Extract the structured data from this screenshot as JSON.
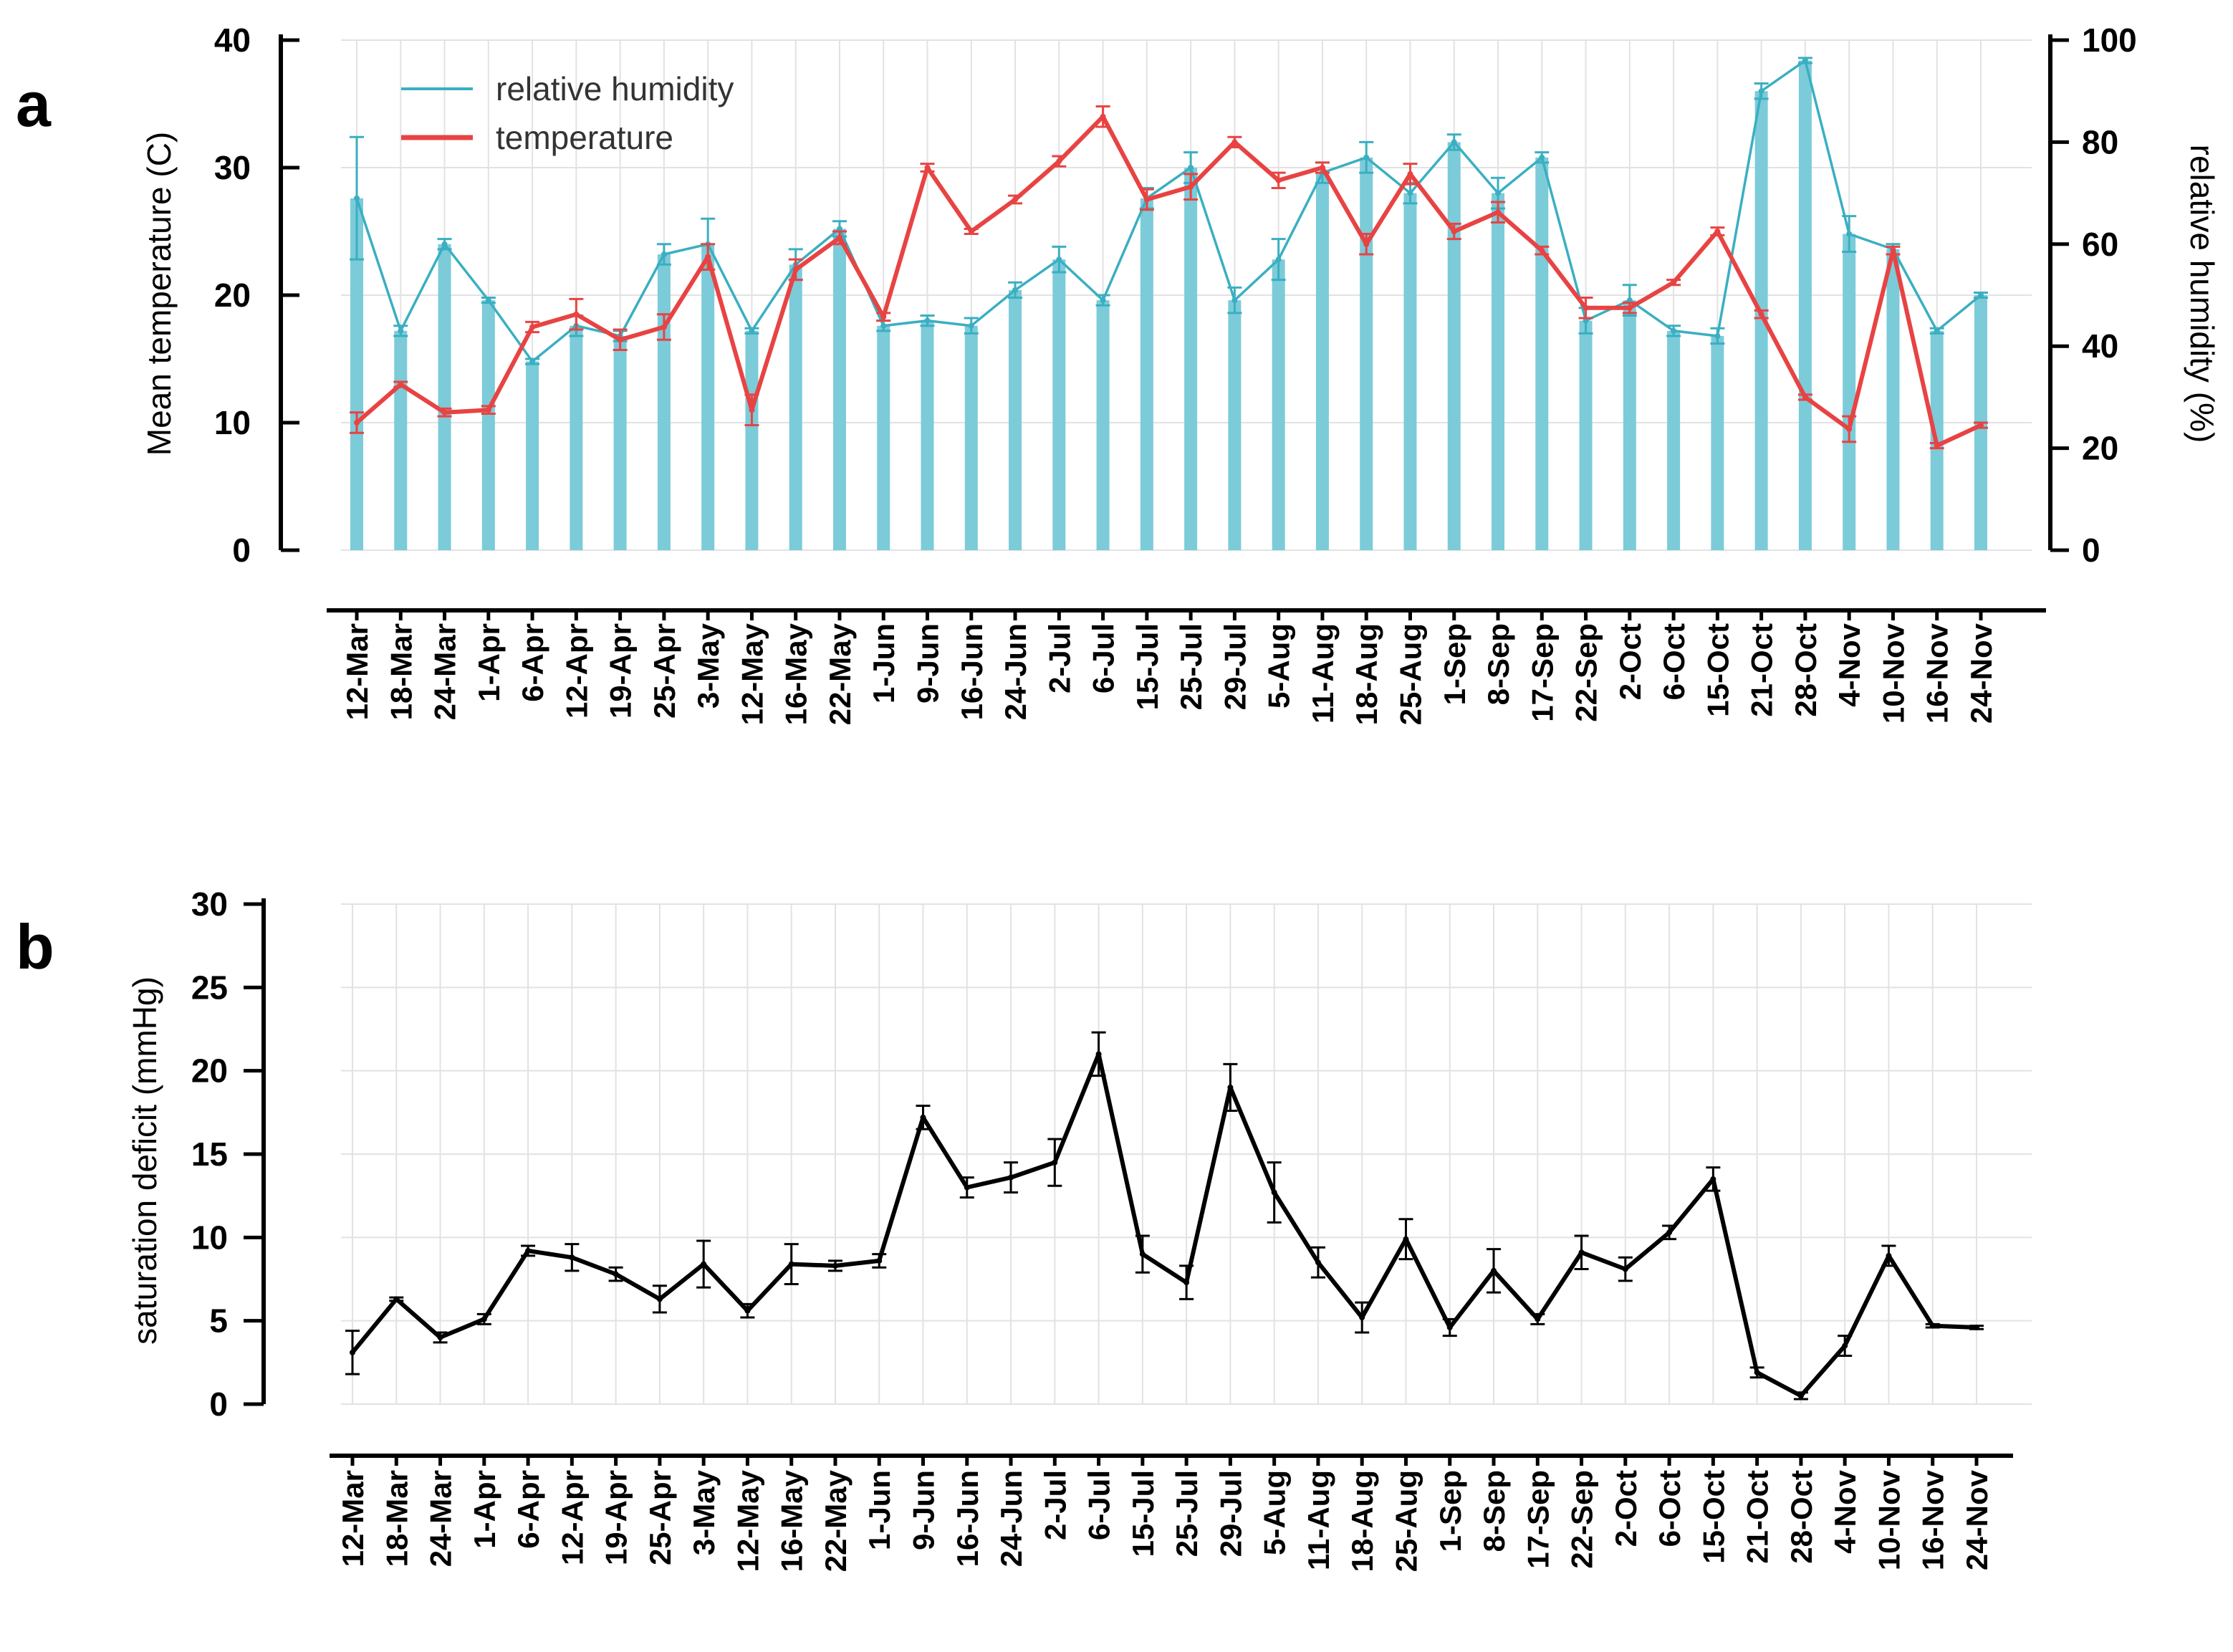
{
  "chart_data": [
    {
      "panel": "a",
      "type": "bar+line",
      "ylabel_left": "Mean temperature (C)",
      "ylabel_right": "relative humidity (%)",
      "ylim_left": [
        0,
        40
      ],
      "ylim_right": [
        0,
        100
      ],
      "yticks_left": [
        "0",
        "10",
        "20",
        "30",
        "40"
      ],
      "yticks_right": [
        "0",
        "20",
        "40",
        "60",
        "80",
        "100"
      ],
      "grid": true,
      "legend_position": "top-left",
      "categories": [
        "12-Mar",
        "18-Mar",
        "24-Mar",
        "1-Apr",
        "6-Apr",
        "12-Apr",
        "19-Apr",
        "25-Apr",
        "3-May",
        "12-May",
        "16-May",
        "22-May",
        "1-Jun",
        "9-Jun",
        "16-Jun",
        "24-Jun",
        "2-Jul",
        "6-Jul",
        "15-Jul",
        "25-Jul",
        "29-Jul",
        "5-Aug",
        "11-Aug",
        "18-Aug",
        "25-Aug",
        "1-Sep",
        "8-Sep",
        "17-Sep",
        "22-Sep",
        "2-Oct",
        "6-Oct",
        "15-Oct",
        "21-Oct",
        "28-Oct",
        "4-Nov",
        "10-Nov",
        "16-Nov",
        "24-Nov"
      ],
      "series": [
        {
          "name": "relative humidity",
          "axis": "right",
          "color": "#3aafc1",
          "bar_color": "#7ccbd9",
          "values": [
            69,
            43,
            60,
            49,
            37,
            44,
            42,
            58,
            60,
            43,
            56,
            63,
            44,
            45,
            44,
            51,
            57,
            49,
            69,
            75,
            49,
            57,
            74,
            77,
            70,
            80,
            70,
            77,
            45,
            49,
            43,
            42,
            90,
            96,
            62,
            59,
            43,
            50
          ],
          "errors": [
            12,
            1,
            1,
            0.5,
            0.5,
            2,
            1,
            2,
            5,
            0.5,
            3,
            1.5,
            1,
            1,
            1.5,
            1.5,
            2.5,
            1,
            2,
            3,
            2.5,
            4,
            2,
            3,
            2,
            1.5,
            3,
            1,
            2.5,
            3,
            1,
            1.5,
            1.5,
            0.5,
            3.5,
            1,
            0.5,
            0.5
          ]
        },
        {
          "name": "temperature",
          "axis": "left",
          "color": "#e84343",
          "values": [
            10,
            13,
            10.8,
            11,
            17.5,
            18.5,
            16.5,
            17.5,
            23,
            11,
            22,
            24.5,
            18.3,
            30,
            25,
            27.5,
            30.5,
            34,
            27.5,
            28.5,
            32,
            29,
            30,
            24,
            29.5,
            25,
            26.5,
            23.5,
            19,
            19,
            21,
            25,
            18.5,
            12,
            9.5,
            23.5,
            8.2,
            9.8
          ],
          "errors": [
            0.8,
            0.2,
            0.3,
            0.3,
            0.4,
            1.2,
            0.8,
            1,
            1,
            1.2,
            0.8,
            0.5,
            0.3,
            0.3,
            0.2,
            0.3,
            0.4,
            0.8,
            0.8,
            1,
            0.4,
            0.6,
            0.4,
            0.8,
            0.8,
            0.6,
            0.8,
            0.3,
            0.8,
            0.4,
            0.2,
            0.3,
            0.3,
            0.2,
            1,
            0.3,
            0.2,
            0.2
          ]
        }
      ]
    },
    {
      "panel": "b",
      "type": "line",
      "ylabel": "saturation deficit (mmHg)",
      "ylim": [
        0,
        30
      ],
      "yticks": [
        "0",
        "5",
        "10",
        "15",
        "20",
        "25",
        "30"
      ],
      "grid": true,
      "categories": [
        "12-Mar",
        "18-Mar",
        "24-Mar",
        "1-Apr",
        "6-Apr",
        "12-Apr",
        "19-Apr",
        "25-Apr",
        "3-May",
        "12-May",
        "16-May",
        "22-May",
        "1-Jun",
        "9-Jun",
        "16-Jun",
        "24-Jun",
        "2-Jul",
        "6-Jul",
        "15-Jul",
        "25-Jul",
        "29-Jul",
        "5-Aug",
        "11-Aug",
        "18-Aug",
        "25-Aug",
        "1-Sep",
        "8-Sep",
        "17-Sep",
        "22-Sep",
        "2-Oct",
        "6-Oct",
        "15-Oct",
        "21-Oct",
        "28-Oct",
        "4-Nov",
        "10-Nov",
        "16-Nov",
        "24-Nov"
      ],
      "series": [
        {
          "name": "saturation deficit",
          "color": "#000000",
          "values": [
            3.1,
            6.3,
            4.0,
            5.1,
            9.2,
            8.8,
            7.8,
            6.3,
            8.4,
            5.6,
            8.4,
            8.3,
            8.6,
            17.2,
            13.0,
            13.6,
            14.5,
            21.0,
            9.0,
            7.3,
            19.0,
            12.7,
            8.5,
            5.2,
            9.9,
            4.6,
            8.0,
            5.1,
            9.1,
            8.1,
            10.3,
            13.5,
            1.9,
            0.5,
            3.5,
            8.9,
            4.7,
            4.6
          ],
          "errors": [
            1.3,
            0.1,
            0.3,
            0.3,
            0.3,
            0.8,
            0.4,
            0.8,
            1.4,
            0.4,
            1.2,
            0.3,
            0.4,
            0.7,
            0.6,
            0.9,
            1.4,
            1.3,
            1.1,
            1.0,
            1.4,
            1.8,
            0.9,
            0.9,
            1.2,
            0.5,
            1.3,
            0.3,
            1.0,
            0.7,
            0.4,
            0.7,
            0.3,
            0.2,
            0.6,
            0.6,
            0.1,
            0.1
          ]
        }
      ]
    }
  ]
}
